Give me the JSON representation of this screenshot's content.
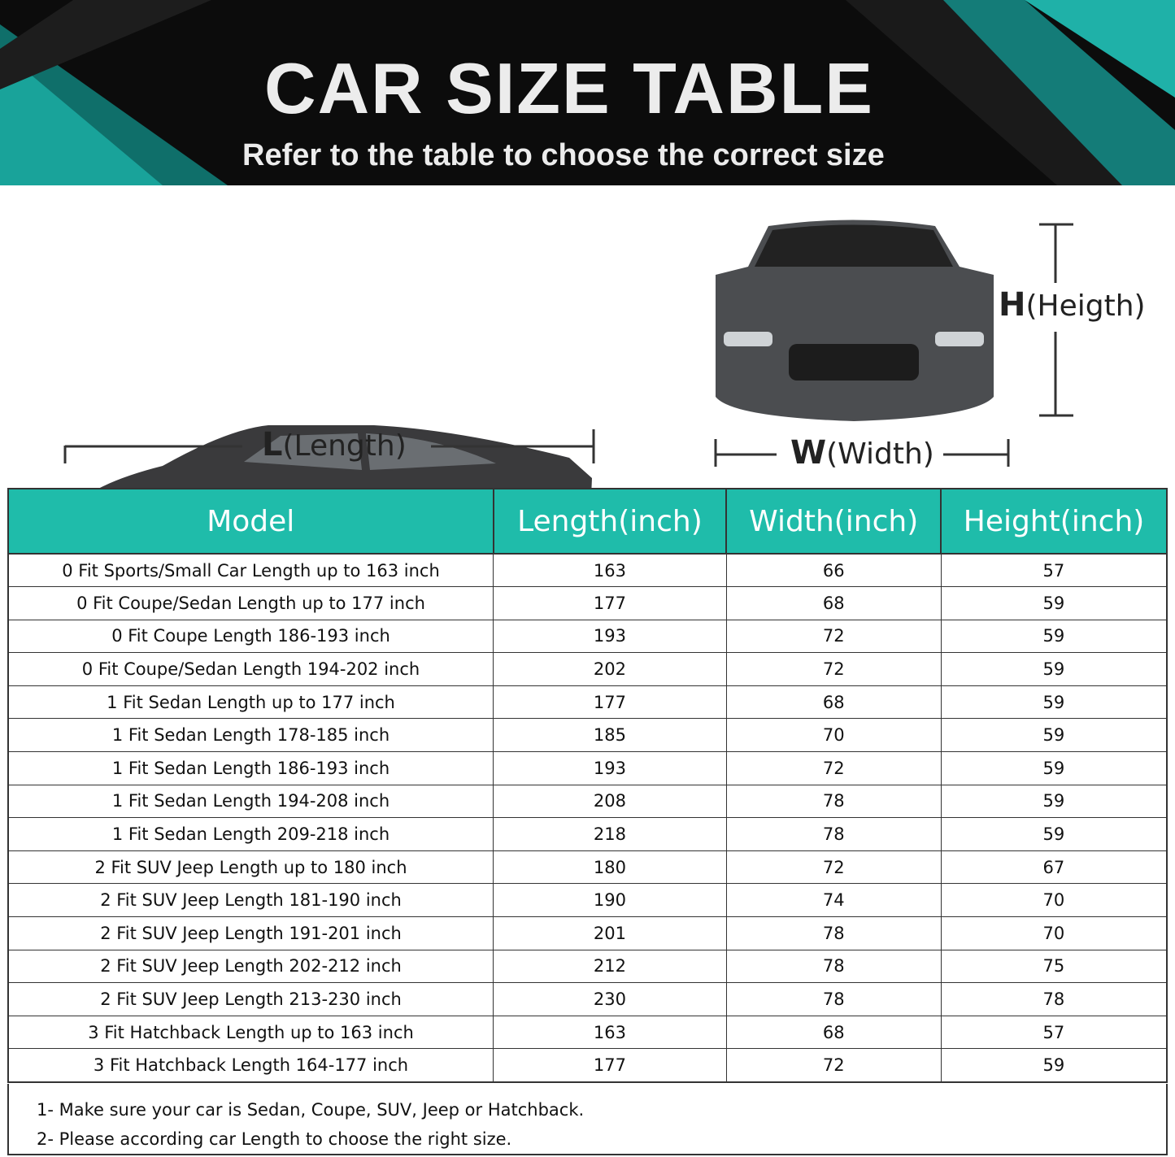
{
  "header": {
    "title": "CAR SIZE TABLE",
    "subtitle": "Refer to the table to choose the correct size",
    "accent": "#1fbcaa"
  },
  "diagram": {
    "length_letter": "L",
    "length_word": "(Length)",
    "width_letter": "W",
    "width_word": "(Width)",
    "height_letter": "H",
    "height_word": "(Heigth)"
  },
  "table": {
    "columns": [
      "Model",
      "Length(inch)",
      "Width(inch)",
      "Height(inch)"
    ],
    "rows": [
      [
        "0 Fit Sports/Small Car Length up to 163 inch",
        "163",
        "66",
        "57"
      ],
      [
        "0 Fit Coupe/Sedan Length up to 177 inch",
        "177",
        "68",
        "59"
      ],
      [
        "0 Fit Coupe Length 186-193 inch",
        "193",
        "72",
        "59"
      ],
      [
        "0 Fit Coupe/Sedan Length 194-202 inch",
        "202",
        "72",
        "59"
      ],
      [
        "1 Fit Sedan Length up to 177 inch",
        "177",
        "68",
        "59"
      ],
      [
        "1 Fit Sedan Length 178-185 inch",
        "185",
        "70",
        "59"
      ],
      [
        "1 Fit Sedan Length 186-193 inch",
        "193",
        "72",
        "59"
      ],
      [
        "1 Fit Sedan Length 194-208 inch",
        "208",
        "78",
        "59"
      ],
      [
        "1 Fit Sedan Length 209-218 inch",
        "218",
        "78",
        "59"
      ],
      [
        "2 Fit SUV Jeep Length up to 180 inch",
        "180",
        "72",
        "67"
      ],
      [
        "2 Fit SUV Jeep Length 181-190 inch",
        "190",
        "74",
        "70"
      ],
      [
        "2 Fit SUV Jeep Length 191-201 inch",
        "201",
        "78",
        "70"
      ],
      [
        "2 Fit SUV Jeep Length 202-212 inch",
        "212",
        "78",
        "75"
      ],
      [
        "2 Fit SUV Jeep Length 213-230 inch",
        "230",
        "78",
        "78"
      ],
      [
        "3 Fit Hatchback Length up to 163 inch",
        "163",
        "68",
        "57"
      ],
      [
        "3 Fit Hatchback Length 164-177 inch",
        "177",
        "72",
        "59"
      ]
    ]
  },
  "notes": [
    "1- Make sure your car is Sedan, Coupe, SUV, Jeep or Hatchback.",
    "2- Please according car Length to choose the right size."
  ]
}
